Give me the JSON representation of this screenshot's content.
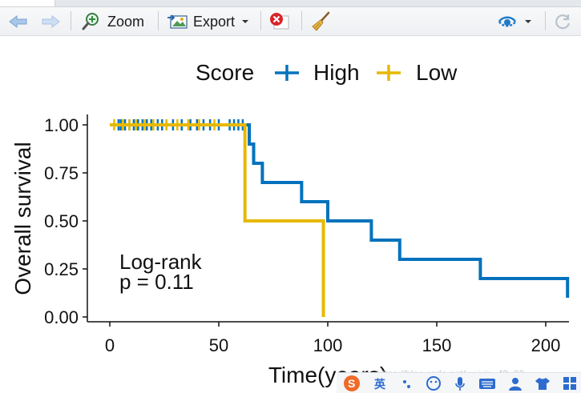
{
  "toolbar": {
    "zoom_label": "Zoom",
    "export_label": "Export",
    "icons": [
      "back-arrow-icon",
      "forward-arrow-icon",
      "zoom-icon",
      "export-image-icon",
      "chevron-down-icon",
      "remove-plot-icon",
      "broom-icon",
      "publish-icon",
      "refresh-icon"
    ]
  },
  "colors": {
    "high": "#0072BD",
    "low": "#E7B800",
    "accent_red": "#d9242a"
  },
  "chart_data": {
    "type": "line",
    "subtype": "kaplan-meier",
    "legend_title": "Score",
    "legend_position": "top",
    "xlabel": "Time(years)",
    "ylabel": "Overall survival",
    "xlim": [
      0,
      210
    ],
    "ylim": [
      0,
      1
    ],
    "x_ticks": [
      0,
      50,
      100,
      150,
      200
    ],
    "y_ticks": [
      0,
      0.25,
      0.5,
      0.75,
      1
    ],
    "y_tick_labels": [
      "0.00",
      "0.25",
      "0.50",
      "0.75",
      "1.00"
    ],
    "annotation": [
      "Log-rank",
      "p = 0.11"
    ],
    "grid": false,
    "series": [
      {
        "name": "High",
        "color": "#0072BD",
        "steps": [
          [
            0,
            1.0
          ],
          [
            64,
            0.9
          ],
          [
            66,
            0.8
          ],
          [
            70,
            0.7
          ],
          [
            88,
            0.6
          ],
          [
            100,
            0.5
          ],
          [
            120,
            0.4
          ],
          [
            133,
            0.3
          ],
          [
            170,
            0.2
          ],
          [
            210,
            0.2
          ],
          [
            210,
            0.1
          ]
        ],
        "censored": [
          4,
          5,
          7,
          9,
          11,
          13,
          15,
          17,
          19,
          22,
          24,
          26,
          29,
          33,
          37,
          40,
          43,
          46,
          50,
          55,
          57,
          59,
          61
        ]
      },
      {
        "name": "Low",
        "color": "#E7B800",
        "steps": [
          [
            0,
            1.0
          ],
          [
            62,
            0.5
          ],
          [
            98,
            0.5
          ],
          [
            98,
            0.0
          ]
        ],
        "censored": [
          2,
          6,
          9,
          12,
          16,
          20,
          26,
          31,
          36,
          41,
          48
        ]
      }
    ]
  },
  "watermark": "https://blog.csdn.net/weixin_43_00",
  "taskbar_icons": [
    "sogou-ime-icon",
    "english-mode-icon",
    "punctuation-icon",
    "emoji-icon",
    "microphone-icon",
    "keyboard-icon",
    "user-icon",
    "shirt-icon",
    "grid-icon"
  ]
}
